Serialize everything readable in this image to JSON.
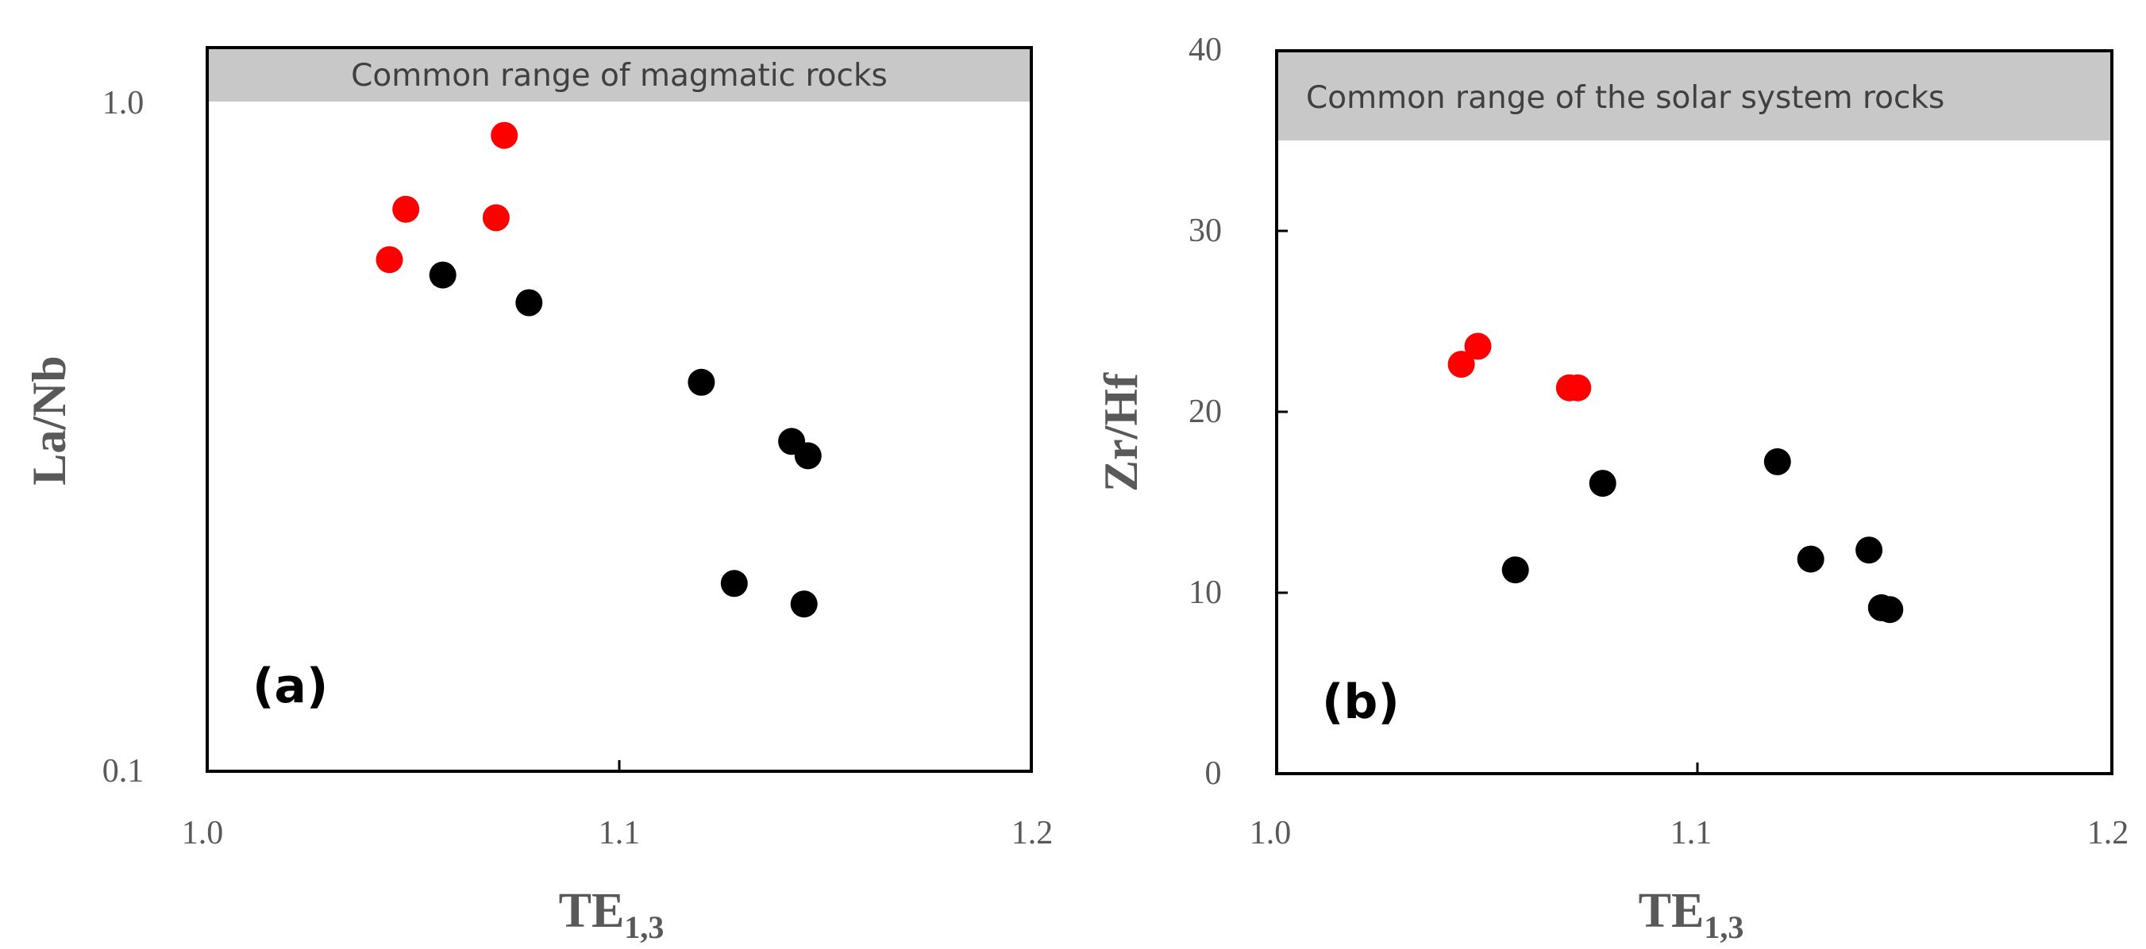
{
  "chart_data": [
    {
      "type": "scatter",
      "panel_label": "(a)",
      "xlabel_main": "TE",
      "xlabel_sub": "1,3",
      "ylabel": "La/Nb",
      "y_scale": "log",
      "xlim": [
        1.0,
        1.2
      ],
      "ylim": [
        0.1,
        1.0
      ],
      "x_ticks": [
        "1.0",
        "1.1",
        "1.2"
      ],
      "y_ticks": [
        "0.1",
        "1.0"
      ],
      "grid": false,
      "band": {
        "label": "Common range of magmatic rocks",
        "y_from": 1.0,
        "y_to": 1.2,
        "color": "#c8c8c8"
      },
      "series": [
        {
          "color": "#ff0000",
          "points": [
            [
              1.044,
              0.58
            ],
            [
              1.048,
              0.69
            ],
            [
              1.07,
              0.67
            ],
            [
              1.072,
              0.89
            ]
          ]
        },
        {
          "color": "#000000",
          "points": [
            [
              1.057,
              0.55
            ],
            [
              1.078,
              0.5
            ],
            [
              1.12,
              0.38
            ],
            [
              1.142,
              0.31
            ],
            [
              1.146,
              0.295
            ],
            [
              1.128,
              0.19
            ],
            [
              1.145,
              0.177
            ]
          ]
        }
      ]
    },
    {
      "type": "scatter",
      "panel_label": "(b)",
      "xlabel_main": "TE",
      "xlabel_sub": "1,3",
      "ylabel": "Zr/Hf",
      "y_scale": "linear",
      "xlim": [
        1.0,
        1.2
      ],
      "ylim": [
        0,
        40
      ],
      "x_ticks": [
        "1.0",
        "1.1",
        "1.2"
      ],
      "y_ticks": [
        "0",
        "10",
        "20",
        "30",
        "40"
      ],
      "grid": false,
      "band": {
        "label": "Common range of the solar system rocks",
        "y_from": 35,
        "y_to": 40,
        "color": "#c8c8c8"
      },
      "series": [
        {
          "color": "#ff0000",
          "points": [
            [
              1.044,
              22.7
            ],
            [
              1.048,
              23.7
            ],
            [
              1.07,
              21.4
            ],
            [
              1.072,
              21.4
            ]
          ]
        },
        {
          "color": "#000000",
          "points": [
            [
              1.057,
              11.3
            ],
            [
              1.078,
              16.1
            ],
            [
              1.12,
              17.3
            ],
            [
              1.128,
              11.9
            ],
            [
              1.142,
              12.4
            ],
            [
              1.145,
              9.2
            ],
            [
              1.147,
              9.1
            ]
          ]
        }
      ]
    }
  ]
}
